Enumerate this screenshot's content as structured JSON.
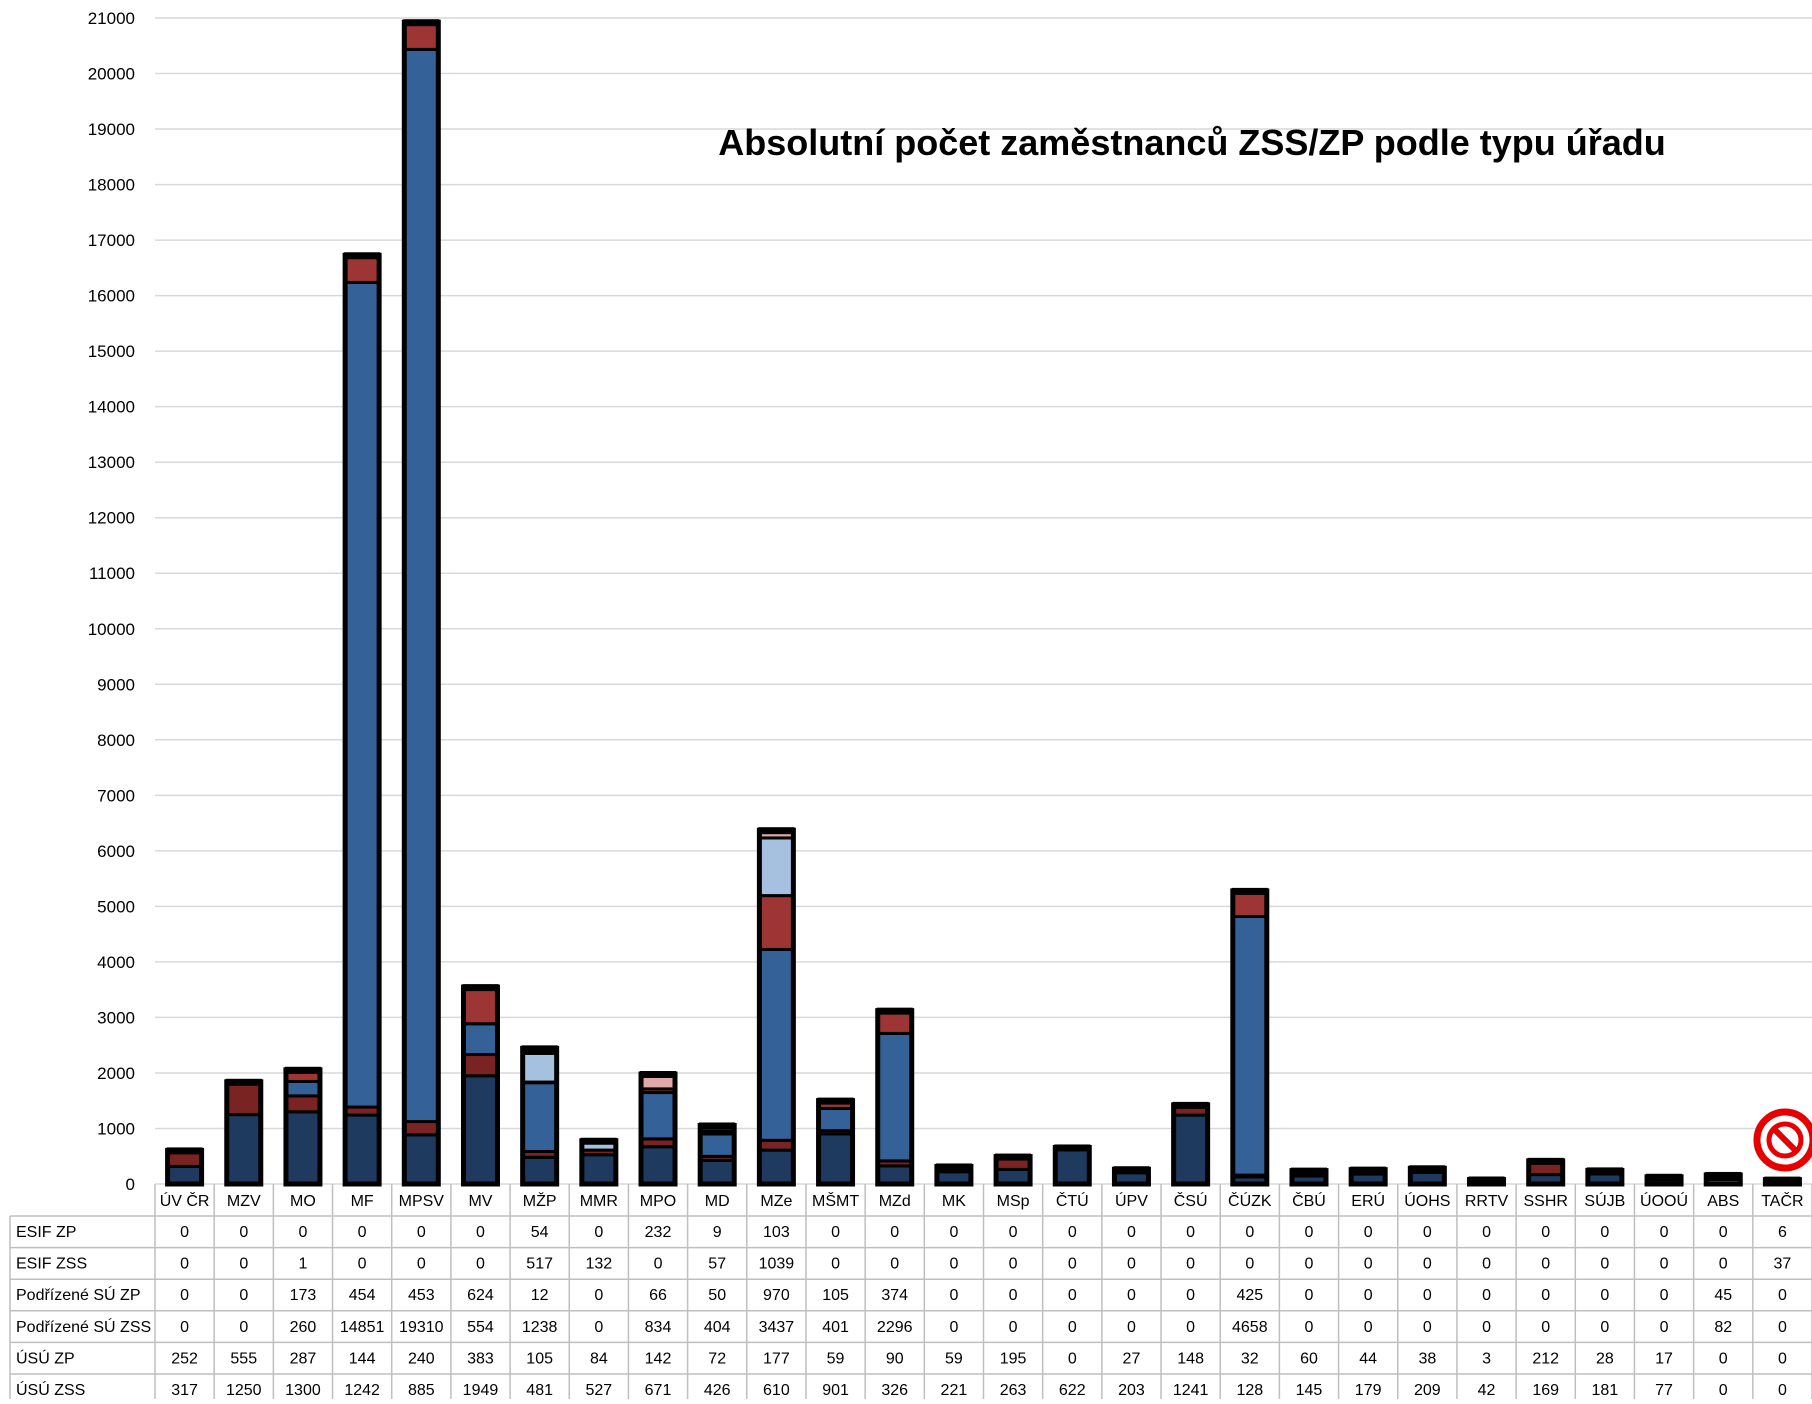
{
  "chart_data": {
    "type": "bar",
    "stacked": true,
    "title": "Absolutní počet  zaměstnanců ZSS/ZP podle typu úřadu",
    "xlabel": "",
    "ylabel": "",
    "ylim": [
      0,
      21000
    ],
    "ytick_step": 1000,
    "yticks": [
      "0",
      "1000",
      "2000",
      "3000",
      "4000",
      "5000",
      "6000",
      "7000",
      "8000",
      "9000",
      "10000",
      "11000",
      "12000",
      "13000",
      "14000",
      "15000",
      "16000",
      "17000",
      "18000",
      "19000",
      "20000",
      "21000"
    ],
    "grid": true,
    "legend": "data table below chart",
    "categories": [
      "ÚV ČR",
      "MZV",
      "MO",
      "MF",
      "MPSV",
      "MV",
      "MŽP",
      "MMR",
      "MPO",
      "MD",
      "MZe",
      "MŠMT",
      "MZd",
      "MK",
      "MSp",
      "ČTÚ",
      "ÚPV",
      "ČSÚ",
      "ČÚZK",
      "ČBÚ",
      "ERÚ",
      "ÚOHS",
      "RRTV",
      "SSHR",
      "SÚJB",
      "ÚOOÚ",
      "ABS",
      "TAČR"
    ],
    "series": [
      {
        "name": "ÚSÚ ZSS",
        "color": "#1f3a5f",
        "values": [
          317,
          1250,
          1300,
          1242,
          885,
          1949,
          481,
          527,
          671,
          426,
          610,
          901,
          326,
          221,
          263,
          622,
          203,
          1241,
          128,
          145,
          179,
          209,
          42,
          169,
          181,
          77,
          0,
          0
        ]
      },
      {
        "name": "ÚSÚ ZP",
        "color": "#7a2323",
        "values": [
          252,
          555,
          287,
          144,
          240,
          383,
          105,
          84,
          142,
          72,
          177,
          59,
          90,
          59,
          195,
          0,
          27,
          148,
          32,
          60,
          44,
          38,
          3,
          212,
          28,
          17,
          0,
          0
        ]
      },
      {
        "name": "Podřízené SÚ ZSS",
        "color": "#336198",
        "values": [
          0,
          0,
          260,
          14851,
          19310,
          554,
          1238,
          0,
          834,
          404,
          3437,
          401,
          2296,
          0,
          0,
          0,
          0,
          0,
          4658,
          0,
          0,
          0,
          0,
          0,
          0,
          0,
          82,
          0
        ]
      },
      {
        "name": "Podřízené SÚ ZP",
        "color": "#9e3535",
        "values": [
          0,
          0,
          173,
          454,
          453,
          624,
          12,
          0,
          66,
          50,
          970,
          105,
          374,
          0,
          0,
          0,
          0,
          0,
          425,
          0,
          0,
          0,
          0,
          0,
          0,
          0,
          45,
          0
        ]
      },
      {
        "name": "ESIF ZSS",
        "color": "#a6c1e0",
        "values": [
          0,
          0,
          1,
          0,
          0,
          0,
          517,
          132,
          0,
          57,
          1039,
          0,
          0,
          0,
          0,
          0,
          0,
          0,
          0,
          0,
          0,
          0,
          0,
          0,
          0,
          0,
          0,
          37
        ]
      },
      {
        "name": "ESIF ZP",
        "color": "#e0a8a8",
        "values": [
          0,
          0,
          0,
          0,
          0,
          0,
          54,
          0,
          232,
          9,
          103,
          0,
          0,
          0,
          0,
          0,
          0,
          0,
          0,
          0,
          0,
          0,
          0,
          0,
          0,
          0,
          0,
          6
        ]
      }
    ],
    "table_order": [
      "ESIF ZP",
      "ESIF ZSS",
      "Podřízené SÚ ZP",
      "Podřízené SÚ ZSS",
      "ÚSÚ ZP",
      "ÚSÚ ZSS"
    ]
  },
  "badge": {
    "icon": "no-entry-icon",
    "color": "#e60000"
  }
}
